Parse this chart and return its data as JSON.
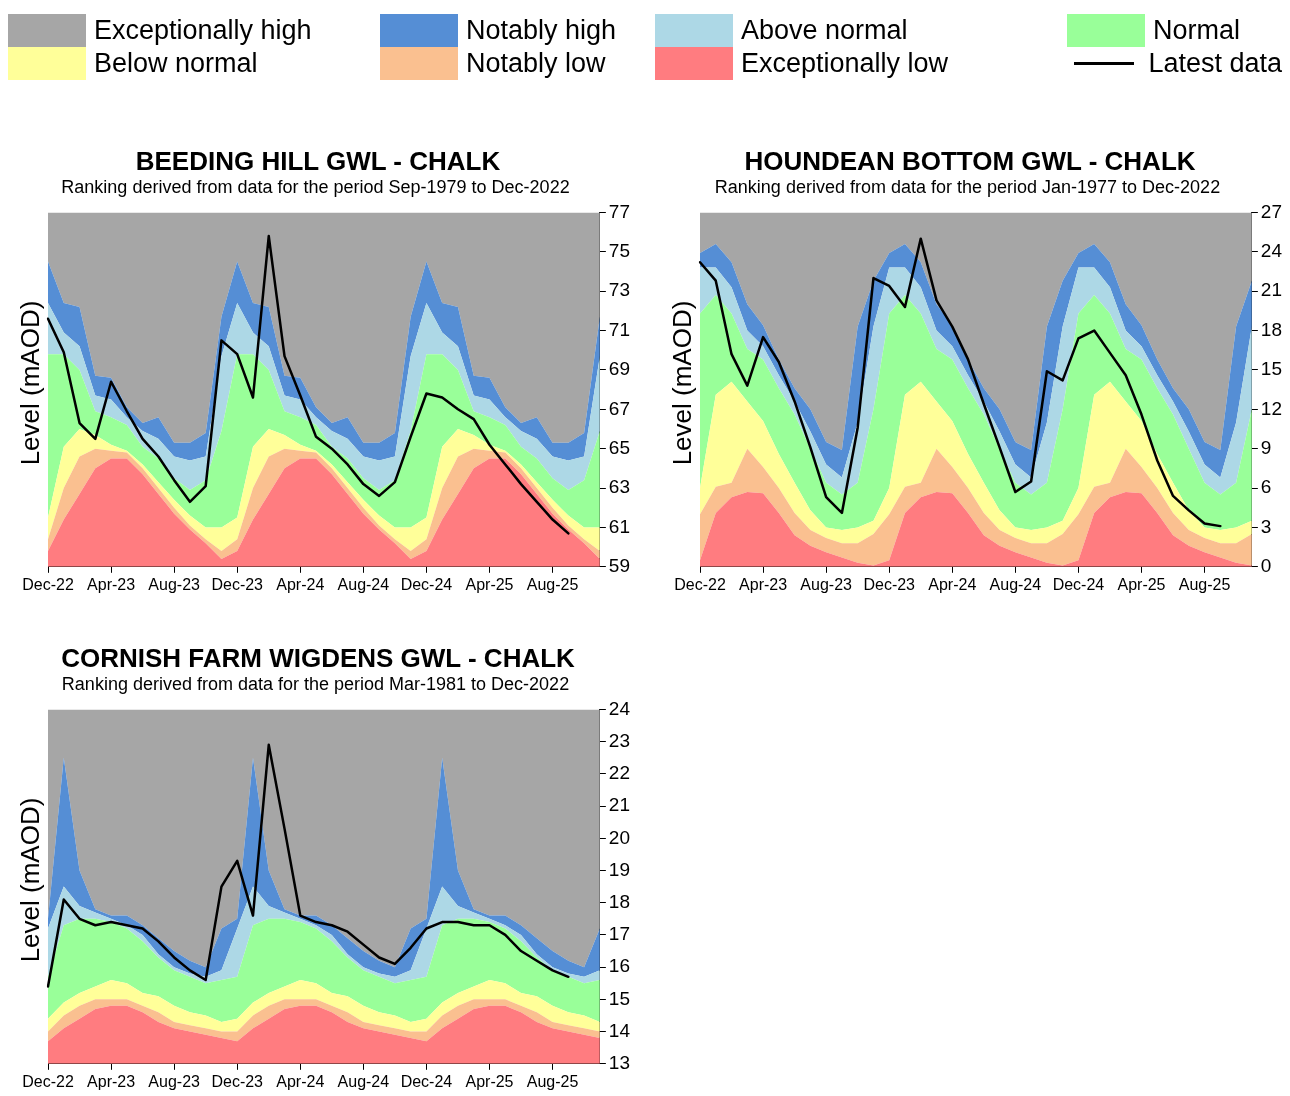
{
  "chart_data": [
    {
      "type": "area",
      "title": "BEEDING HILL GWL - CHALK",
      "subtitle": "Ranking derived from data for the period Sep-1979 to Dec-2022",
      "ylabel": "Level (mAOD)",
      "legend": "top",
      "categories": [
        "Dec-22",
        null,
        null,
        null,
        "Apr-23",
        null,
        null,
        null,
        "Aug-23",
        null,
        null,
        null,
        "Dec-23",
        null,
        null,
        null,
        "Apr-24",
        null,
        null,
        null,
        "Aug-24",
        null,
        null,
        null,
        "Dec-24",
        null,
        null,
        null,
        "Apr-25",
        null,
        null,
        null,
        "Aug-25",
        null,
        null,
        null
      ],
      "ylim": [
        59,
        77
      ],
      "yticks": [
        59,
        61,
        63,
        65,
        67,
        69,
        71,
        73,
        75,
        77
      ],
      "series": [
        {
          "name": "Exceptionally low",
          "color": "#ff7c80",
          "values": [
            59.8,
            61.4,
            62.7,
            64.0,
            64.5,
            64.5,
            63.7,
            62.7,
            61.7,
            60.9,
            60.2,
            59.4,
            59.8,
            61.4,
            62.7,
            64.0,
            64.5,
            64.5,
            63.7,
            62.7,
            61.7,
            60.9,
            60.2,
            59.4,
            59.8,
            61.4,
            62.7,
            64.0,
            64.5,
            64.5,
            63.7,
            62.7,
            61.7,
            60.9,
            60.2,
            59.4
          ]
        },
        {
          "name": "Notably low",
          "color": "#fac090",
          "values": [
            60.4,
            63.0,
            64.6,
            65.0,
            64.9,
            64.8,
            64.0,
            63.0,
            62.0,
            61.1,
            60.4,
            59.8,
            60.4,
            63.0,
            64.6,
            65.0,
            64.9,
            64.8,
            64.0,
            63.0,
            62.0,
            61.1,
            60.4,
            59.8,
            60.4,
            63.0,
            64.6,
            65.0,
            64.9,
            64.8,
            64.0,
            63.0,
            62.0,
            61.1,
            60.4,
            59.8
          ]
        },
        {
          "name": "Below normal",
          "color": "#ffff99",
          "values": [
            61.5,
            65.1,
            66.0,
            65.7,
            65.2,
            64.9,
            64.2,
            63.3,
            62.4,
            61.6,
            61.0,
            61.0,
            61.5,
            65.1,
            66.0,
            65.7,
            65.2,
            64.9,
            64.2,
            63.3,
            62.4,
            61.6,
            61.0,
            61.0,
            61.5,
            65.1,
            66.0,
            65.7,
            65.2,
            64.9,
            64.2,
            63.3,
            62.4,
            61.6,
            61.0,
            61.0
          ]
        },
        {
          "name": "Normal",
          "color": "#99ff99",
          "values": [
            69.8,
            69.8,
            69.0,
            66.9,
            66.6,
            66.2,
            65.1,
            64.5,
            63.5,
            62.9,
            63.4,
            65.9,
            69.8,
            69.8,
            69.0,
            66.9,
            66.6,
            66.2,
            65.1,
            64.5,
            63.5,
            62.9,
            63.4,
            65.9,
            69.8,
            69.8,
            69.0,
            66.9,
            66.6,
            66.2,
            65.1,
            64.5,
            63.5,
            62.9,
            63.4,
            65.9
          ]
        },
        {
          "name": "Above normal",
          "color": "#add8e6",
          "values": [
            72.4,
            70.9,
            70.2,
            67.7,
            67.5,
            66.6,
            65.9,
            65.5,
            64.6,
            64.4,
            64.6,
            69.7,
            72.4,
            70.9,
            70.2,
            67.7,
            67.5,
            66.6,
            65.9,
            65.5,
            64.6,
            64.4,
            64.6,
            69.7,
            72.4,
            70.9,
            70.2,
            67.7,
            67.5,
            66.6,
            65.9,
            65.5,
            64.6,
            64.4,
            64.6,
            69.7
          ]
        },
        {
          "name": "Notably high",
          "color": "#558ed5",
          "values": [
            74.5,
            72.4,
            72.2,
            68.7,
            68.6,
            67.1,
            66.3,
            66.6,
            65.3,
            65.3,
            65.8,
            71.7,
            74.5,
            72.4,
            72.2,
            68.7,
            68.6,
            67.1,
            66.3,
            66.6,
            65.3,
            65.3,
            65.8,
            71.7,
            74.5,
            72.4,
            72.2,
            68.7,
            68.6,
            67.1,
            66.3,
            66.6,
            65.3,
            65.3,
            65.8,
            71.7
          ]
        },
        {
          "name": "Exceptionally high",
          "color": "#a6a6a6",
          "values": [
            77,
            77,
            77,
            77,
            77,
            77,
            77,
            77,
            77,
            77,
            77,
            77,
            77,
            77,
            77,
            77,
            77,
            77,
            77,
            77,
            77,
            77,
            77,
            77,
            77,
            77,
            77,
            77,
            77,
            77,
            77,
            77,
            77,
            77,
            77,
            77
          ]
        },
        {
          "name": "Latest data",
          "type": "line",
          "color": "#000000",
          "values": [
            71.6,
            69.9,
            66.3,
            65.5,
            68.4,
            66.9,
            65.5,
            64.6,
            63.4,
            62.3,
            63.1,
            70.5,
            69.8,
            67.6,
            75.8,
            69.7,
            67.7,
            65.6,
            65.0,
            64.2,
            63.2,
            62.6,
            63.3,
            65.6,
            67.8,
            67.6,
            67.0,
            66.5,
            65.2,
            64.2,
            63.2,
            62.3,
            61.4,
            60.7,
            null,
            null
          ]
        }
      ]
    },
    {
      "type": "area",
      "title": "HOUNDEAN BOTTOM GWL - CHALK",
      "subtitle": "Ranking derived from data for the period Jan-1977 to Dec-2022",
      "ylabel": "Level (mAOD)",
      "categories": [
        "Dec-22",
        null,
        null,
        null,
        "Apr-23",
        null,
        null,
        null,
        "Aug-23",
        null,
        null,
        null,
        "Dec-23",
        null,
        null,
        null,
        "Apr-24",
        null,
        null,
        null,
        "Aug-24",
        null,
        null,
        null,
        "Dec-24",
        null,
        null,
        null,
        "Apr-25",
        null,
        null,
        null,
        "Aug-25",
        null,
        null,
        null
      ],
      "ylim": [
        0,
        27
      ],
      "yticks": [
        0,
        3,
        6,
        9,
        12,
        15,
        18,
        21,
        24,
        27
      ],
      "series": [
        {
          "color": "#ff7c80",
          "values": [
            0.5,
            4.1,
            5.3,
            5.7,
            5.6,
            4.1,
            2.4,
            1.6,
            1.1,
            0.7,
            0.3,
            0.1,
            0.5,
            4.1,
            5.3,
            5.7,
            5.6,
            4.1,
            2.4,
            1.6,
            1.1,
            0.7,
            0.3,
            0.1,
            0.5,
            4.1,
            5.3,
            5.7,
            5.6,
            4.1,
            2.4,
            1.6,
            1.1,
            0.7,
            0.3,
            0.1
          ]
        },
        {
          "color": "#fac090",
          "values": [
            4.0,
            6.1,
            6.4,
            9.0,
            7.6,
            6.0,
            4.1,
            2.8,
            2.2,
            1.8,
            1.8,
            2.5,
            4.0,
            6.1,
            6.4,
            9.0,
            7.6,
            6.0,
            4.1,
            2.8,
            2.2,
            1.8,
            1.8,
            2.5,
            4.0,
            6.1,
            6.4,
            9.0,
            7.6,
            6.0,
            4.1,
            2.8,
            2.2,
            1.8,
            1.8,
            2.5
          ]
        },
        {
          "color": "#ffff99",
          "values": [
            6.0,
            13.1,
            14.1,
            12.6,
            11.1,
            8.6,
            6.4,
            4.3,
            3.0,
            2.8,
            3.0,
            3.5,
            6.0,
            13.1,
            14.1,
            12.6,
            11.1,
            8.6,
            6.4,
            4.3,
            3.0,
            2.8,
            3.0,
            3.5,
            6.0,
            13.1,
            14.1,
            12.6,
            11.1,
            8.6,
            6.4,
            4.3,
            3.0,
            2.8,
            3.0,
            3.5
          ]
        },
        {
          "color": "#99ff99",
          "values": [
            19.3,
            20.7,
            19.3,
            16.6,
            15.8,
            13.6,
            11.6,
            9.0,
            6.4,
            5.5,
            6.4,
            12.0,
            19.3,
            20.7,
            19.3,
            16.6,
            15.8,
            13.6,
            11.6,
            9.0,
            6.4,
            5.5,
            6.4,
            12.0,
            19.3,
            20.7,
            19.3,
            16.6,
            15.8,
            13.6,
            11.6,
            9.0,
            6.4,
            5.5,
            6.4,
            12.0
          ]
        },
        {
          "color": "#add8e6",
          "values": [
            22.8,
            22.8,
            21.3,
            18.0,
            16.8,
            14.6,
            12.6,
            10.3,
            7.8,
            6.8,
            11.0,
            18.3,
            22.8,
            22.8,
            21.3,
            18.0,
            16.8,
            14.6,
            12.6,
            10.3,
            7.8,
            6.8,
            11.0,
            18.3,
            22.8,
            22.8,
            21.3,
            18.0,
            16.8,
            14.6,
            12.6,
            10.3,
            7.8,
            6.8,
            11.0,
            18.3
          ]
        },
        {
          "color": "#558ed5",
          "values": [
            23.9,
            24.6,
            23.2,
            20.0,
            18.4,
            15.8,
            13.6,
            12.0,
            9.5,
            8.9,
            18.3,
            21.8,
            23.9,
            24.6,
            23.2,
            20.0,
            18.4,
            15.8,
            13.6,
            12.0,
            9.5,
            8.9,
            18.3,
            21.8,
            23.9,
            24.6,
            23.2,
            20.0,
            18.4,
            15.8,
            13.6,
            12.0,
            9.5,
            8.9,
            18.3,
            21.8
          ]
        },
        {
          "color": "#a6a6a6",
          "values": [
            27,
            27,
            27,
            27,
            27,
            27,
            27,
            27,
            27,
            27,
            27,
            27,
            27,
            27,
            27,
            27,
            27,
            27,
            27,
            27,
            27,
            27,
            27,
            27,
            27,
            27,
            27,
            27,
            27,
            27,
            27,
            27,
            27,
            27,
            27,
            27
          ]
        },
        {
          "type": "line",
          "color": "#000000",
          "values": [
            23.2,
            21.8,
            16.2,
            13.8,
            17.5,
            15.6,
            12.6,
            9.1,
            5.3,
            4.1,
            10.6,
            22.0,
            21.4,
            19.8,
            25.0,
            20.3,
            18.3,
            15.8,
            12.4,
            9.1,
            5.7,
            6.5,
            14.9,
            14.2,
            17.4,
            18.0,
            16.3,
            14.6,
            11.6,
            8.1,
            5.4,
            4.3,
            3.3,
            3.1,
            null,
            null
          ]
        }
      ]
    },
    {
      "type": "area",
      "title": "CORNISH FARM WIGDENS GWL - CHALK",
      "subtitle": "Ranking derived from data for the period Mar-1981 to Dec-2022",
      "ylabel": "Level (mAOD)",
      "categories": [
        "Dec-22",
        null,
        null,
        null,
        "Apr-23",
        null,
        null,
        null,
        "Aug-23",
        null,
        null,
        null,
        "Dec-23",
        null,
        null,
        null,
        "Apr-24",
        null,
        null,
        null,
        "Aug-24",
        null,
        null,
        null,
        "Dec-24",
        null,
        null,
        null,
        "Apr-25",
        null,
        null,
        null,
        "Aug-25",
        null,
        null,
        null
      ],
      "ylim": [
        13,
        24
      ],
      "yticks": [
        13,
        14,
        15,
        16,
        17,
        18,
        19,
        20,
        21,
        22,
        23,
        24
      ],
      "series": [
        {
          "color": "#ff7c80",
          "values": [
            13.7,
            14.1,
            14.4,
            14.7,
            14.8,
            14.8,
            14.6,
            14.3,
            14.1,
            14.0,
            13.9,
            13.8,
            13.7,
            14.1,
            14.4,
            14.7,
            14.8,
            14.8,
            14.6,
            14.3,
            14.1,
            14.0,
            13.9,
            13.8,
            13.7,
            14.1,
            14.4,
            14.7,
            14.8,
            14.8,
            14.6,
            14.3,
            14.1,
            14.0,
            13.9,
            13.8
          ]
        },
        {
          "color": "#fac090",
          "values": [
            14.0,
            14.5,
            14.8,
            15.0,
            15.0,
            15.0,
            14.8,
            14.6,
            14.3,
            14.2,
            14.1,
            14.0,
            14.0,
            14.5,
            14.8,
            15.0,
            15.0,
            15.0,
            14.8,
            14.6,
            14.3,
            14.2,
            14.1,
            14.0,
            14.0,
            14.5,
            14.8,
            15.0,
            15.0,
            15.0,
            14.8,
            14.6,
            14.3,
            14.2,
            14.1,
            14.0
          ]
        },
        {
          "color": "#ffff99",
          "values": [
            14.4,
            14.9,
            15.2,
            15.4,
            15.6,
            15.5,
            15.2,
            15.1,
            14.8,
            14.6,
            14.5,
            14.3,
            14.4,
            14.9,
            15.2,
            15.4,
            15.6,
            15.5,
            15.2,
            15.1,
            14.8,
            14.6,
            14.5,
            14.3,
            14.4,
            14.9,
            15.2,
            15.4,
            15.6,
            15.5,
            15.2,
            15.1,
            14.8,
            14.6,
            14.5,
            14.3
          ]
        },
        {
          "color": "#99ff99",
          "values": [
            15.7,
            17.3,
            17.5,
            17.5,
            17.4,
            17.2,
            16.8,
            16.3,
            15.9,
            15.7,
            15.5,
            15.6,
            15.7,
            17.3,
            17.5,
            17.5,
            17.4,
            17.2,
            16.8,
            16.3,
            15.9,
            15.7,
            15.5,
            15.6,
            15.7,
            17.3,
            17.5,
            17.5,
            17.4,
            17.2,
            16.8,
            16.3,
            15.9,
            15.7,
            15.5,
            15.6
          ]
        },
        {
          "color": "#add8e6",
          "values": [
            17.2,
            18.5,
            17.9,
            17.7,
            17.5,
            17.3,
            17.0,
            16.4,
            16.0,
            15.8,
            15.7,
            15.9,
            17.2,
            18.5,
            17.9,
            17.7,
            17.5,
            17.3,
            17.0,
            16.4,
            16.0,
            15.8,
            15.7,
            15.9,
            17.2,
            18.5,
            17.9,
            17.7,
            17.5,
            17.3,
            17.0,
            16.4,
            16.0,
            15.8,
            15.7,
            15.9
          ]
        },
        {
          "color": "#558ed5",
          "values": [
            17.5,
            22.5,
            19.0,
            17.8,
            17.6,
            17.6,
            17.3,
            16.9,
            16.5,
            16.2,
            16.0,
            17.2,
            17.5,
            22.5,
            19.0,
            17.8,
            17.6,
            17.6,
            17.3,
            16.9,
            16.5,
            16.2,
            16.0,
            17.2,
            17.5,
            22.5,
            19.0,
            17.8,
            17.6,
            17.6,
            17.3,
            16.9,
            16.5,
            16.2,
            16.0,
            17.2
          ]
        },
        {
          "color": "#a6a6a6",
          "values": [
            24,
            24,
            24,
            24,
            24,
            24,
            24,
            24,
            24,
            24,
            24,
            24,
            24,
            24,
            24,
            24,
            24,
            24,
            24,
            24,
            24,
            24,
            24,
            24,
            24,
            24,
            24,
            24,
            24,
            24,
            24,
            24,
            24,
            24,
            24,
            24
          ]
        },
        {
          "type": "line",
          "color": "#000000",
          "values": [
            15.4,
            18.1,
            17.5,
            17.3,
            17.4,
            17.3,
            17.2,
            16.8,
            16.3,
            15.9,
            15.6,
            18.5,
            19.3,
            17.6,
            22.9,
            20.3,
            17.6,
            17.4,
            17.3,
            17.1,
            16.7,
            16.3,
            16.1,
            16.6,
            17.2,
            17.4,
            17.4,
            17.3,
            17.3,
            17.0,
            16.5,
            16.2,
            15.9,
            15.7,
            null,
            null
          ]
        }
      ]
    }
  ]
}
